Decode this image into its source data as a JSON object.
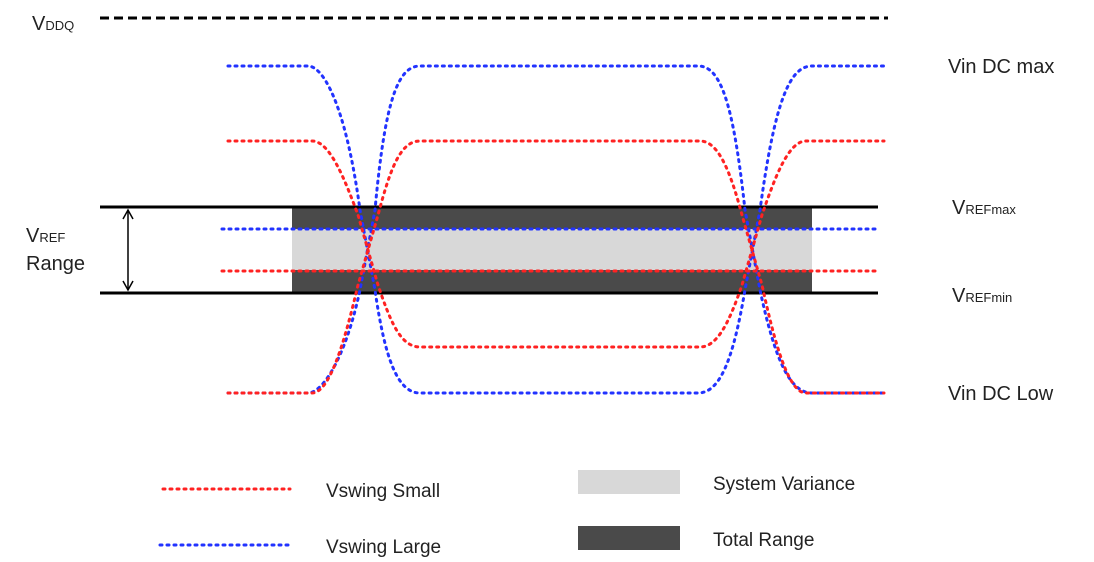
{
  "labels": {
    "vddq": {
      "main": "V",
      "sub": "DDQ"
    },
    "vin_dc_max": "Vin DC max",
    "vin_dc_low": "Vin DC Low",
    "vref_max": {
      "main": "V",
      "sub": "REFmax"
    },
    "vref_min": {
      "main": "V",
      "sub": "REFmin"
    },
    "vref_range": {
      "main": "V",
      "sub": "REF",
      "line2": "Range"
    }
  },
  "legend": {
    "small": {
      "label": "Vswing Small",
      "color": "#ff2222"
    },
    "large": {
      "label": "Vswing Large",
      "color": "#2233ff"
    },
    "system_variance": {
      "label": "System Variance",
      "color": "#d8d8d8"
    },
    "total_range": {
      "label": "Total Range",
      "color": "#4a4a4a"
    }
  }
}
